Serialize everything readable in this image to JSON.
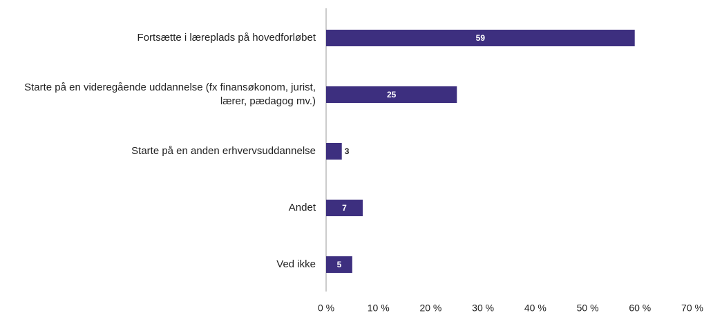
{
  "chart_data": {
    "type": "bar",
    "orientation": "horizontal",
    "categories": [
      "Fortsætte i læreplads på hovedforløbet",
      "Starte på en videregående uddannelse (fx finansøkonom, jurist, lærer, pædagog mv.)",
      "Starte på en anden erhvervsuddannelse",
      "Andet",
      "Ved ikke"
    ],
    "values": [
      59,
      25,
      3,
      7,
      5
    ],
    "color": "#3d2f7f",
    "xlim": [
      0,
      70
    ],
    "xticks": [
      {
        "value": 0,
        "label": "0 %"
      },
      {
        "value": 10,
        "label": "10 %"
      },
      {
        "value": 20,
        "label": "20 %"
      },
      {
        "value": 30,
        "label": "30 %"
      },
      {
        "value": 40,
        "label": "40 %"
      },
      {
        "value": 50,
        "label": "50 %"
      },
      {
        "value": 60,
        "label": "60 %"
      },
      {
        "value": 70,
        "label": "70 %"
      }
    ],
    "grid": false
  }
}
